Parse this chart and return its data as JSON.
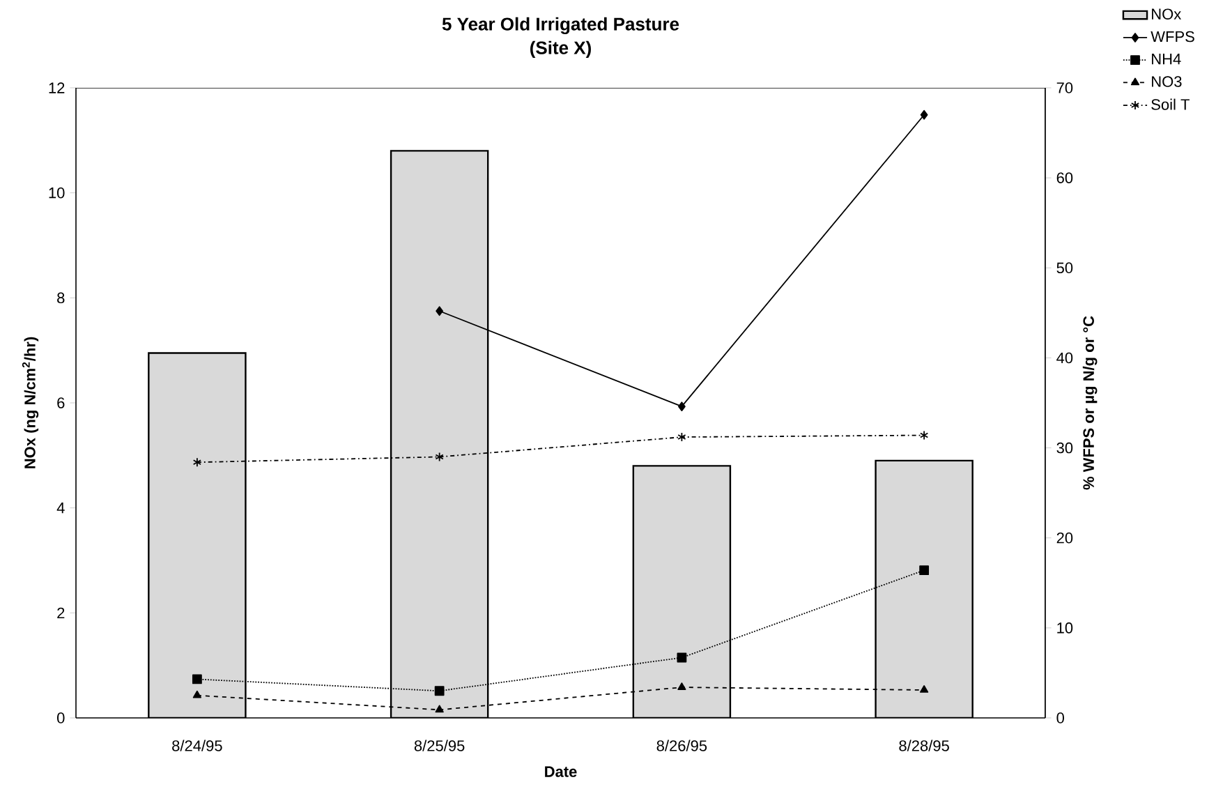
{
  "chart_data": {
    "type": "bar",
    "title": "5 Year Old Irrigated Pasture",
    "subtitle": "(Site X)",
    "xlabel": "Date",
    "ylabel": "NOx (ng N/cm$^{2}$/hr)",
    "y2label": "% WFPS or µg N/g or °C",
    "categories": [
      "8/24/95",
      "8/25/95",
      "8/26/95",
      "8/28/95"
    ],
    "series": [
      {
        "name": "NOx",
        "color": "#d9d9d9",
        "values": [
          6.95,
          10.8,
          4.8,
          4.9
        ]
      },
      {
        "name": "WFPS",
        "type": "line",
        "axis": "y2",
        "color": "#000000",
        "marker": "diamond",
        "line_style": "solid",
        "values": [
          null,
          45.2,
          34.6,
          67.0
        ]
      },
      {
        "name": "NH4",
        "type": "line",
        "axis": "y2",
        "color": "#000000",
        "marker": "square",
        "line_style": "dotted",
        "values": [
          4.3,
          3.0,
          6.7,
          16.4
        ]
      },
      {
        "name": "NO3",
        "type": "line",
        "axis": "y2",
        "color": "#000000",
        "marker": "triangle",
        "line_style": "dashed",
        "values": [
          2.5,
          0.9,
          3.4,
          3.1
        ]
      },
      {
        "name": "Soil T",
        "type": "line",
        "axis": "y2",
        "color": "#000000",
        "marker": "cross",
        "line_style": "dashdot",
        "values": [
          28.4,
          29.0,
          31.2,
          31.4
        ]
      }
    ],
    "ylim": [
      0,
      12
    ],
    "yticks": [
      0,
      2,
      4,
      6,
      8,
      10,
      12
    ],
    "y2lim": [
      0,
      70
    ],
    "y2ticks": [
      0,
      10,
      20,
      30,
      40,
      50,
      60,
      70
    ],
    "grid": false,
    "legend": "top right"
  }
}
